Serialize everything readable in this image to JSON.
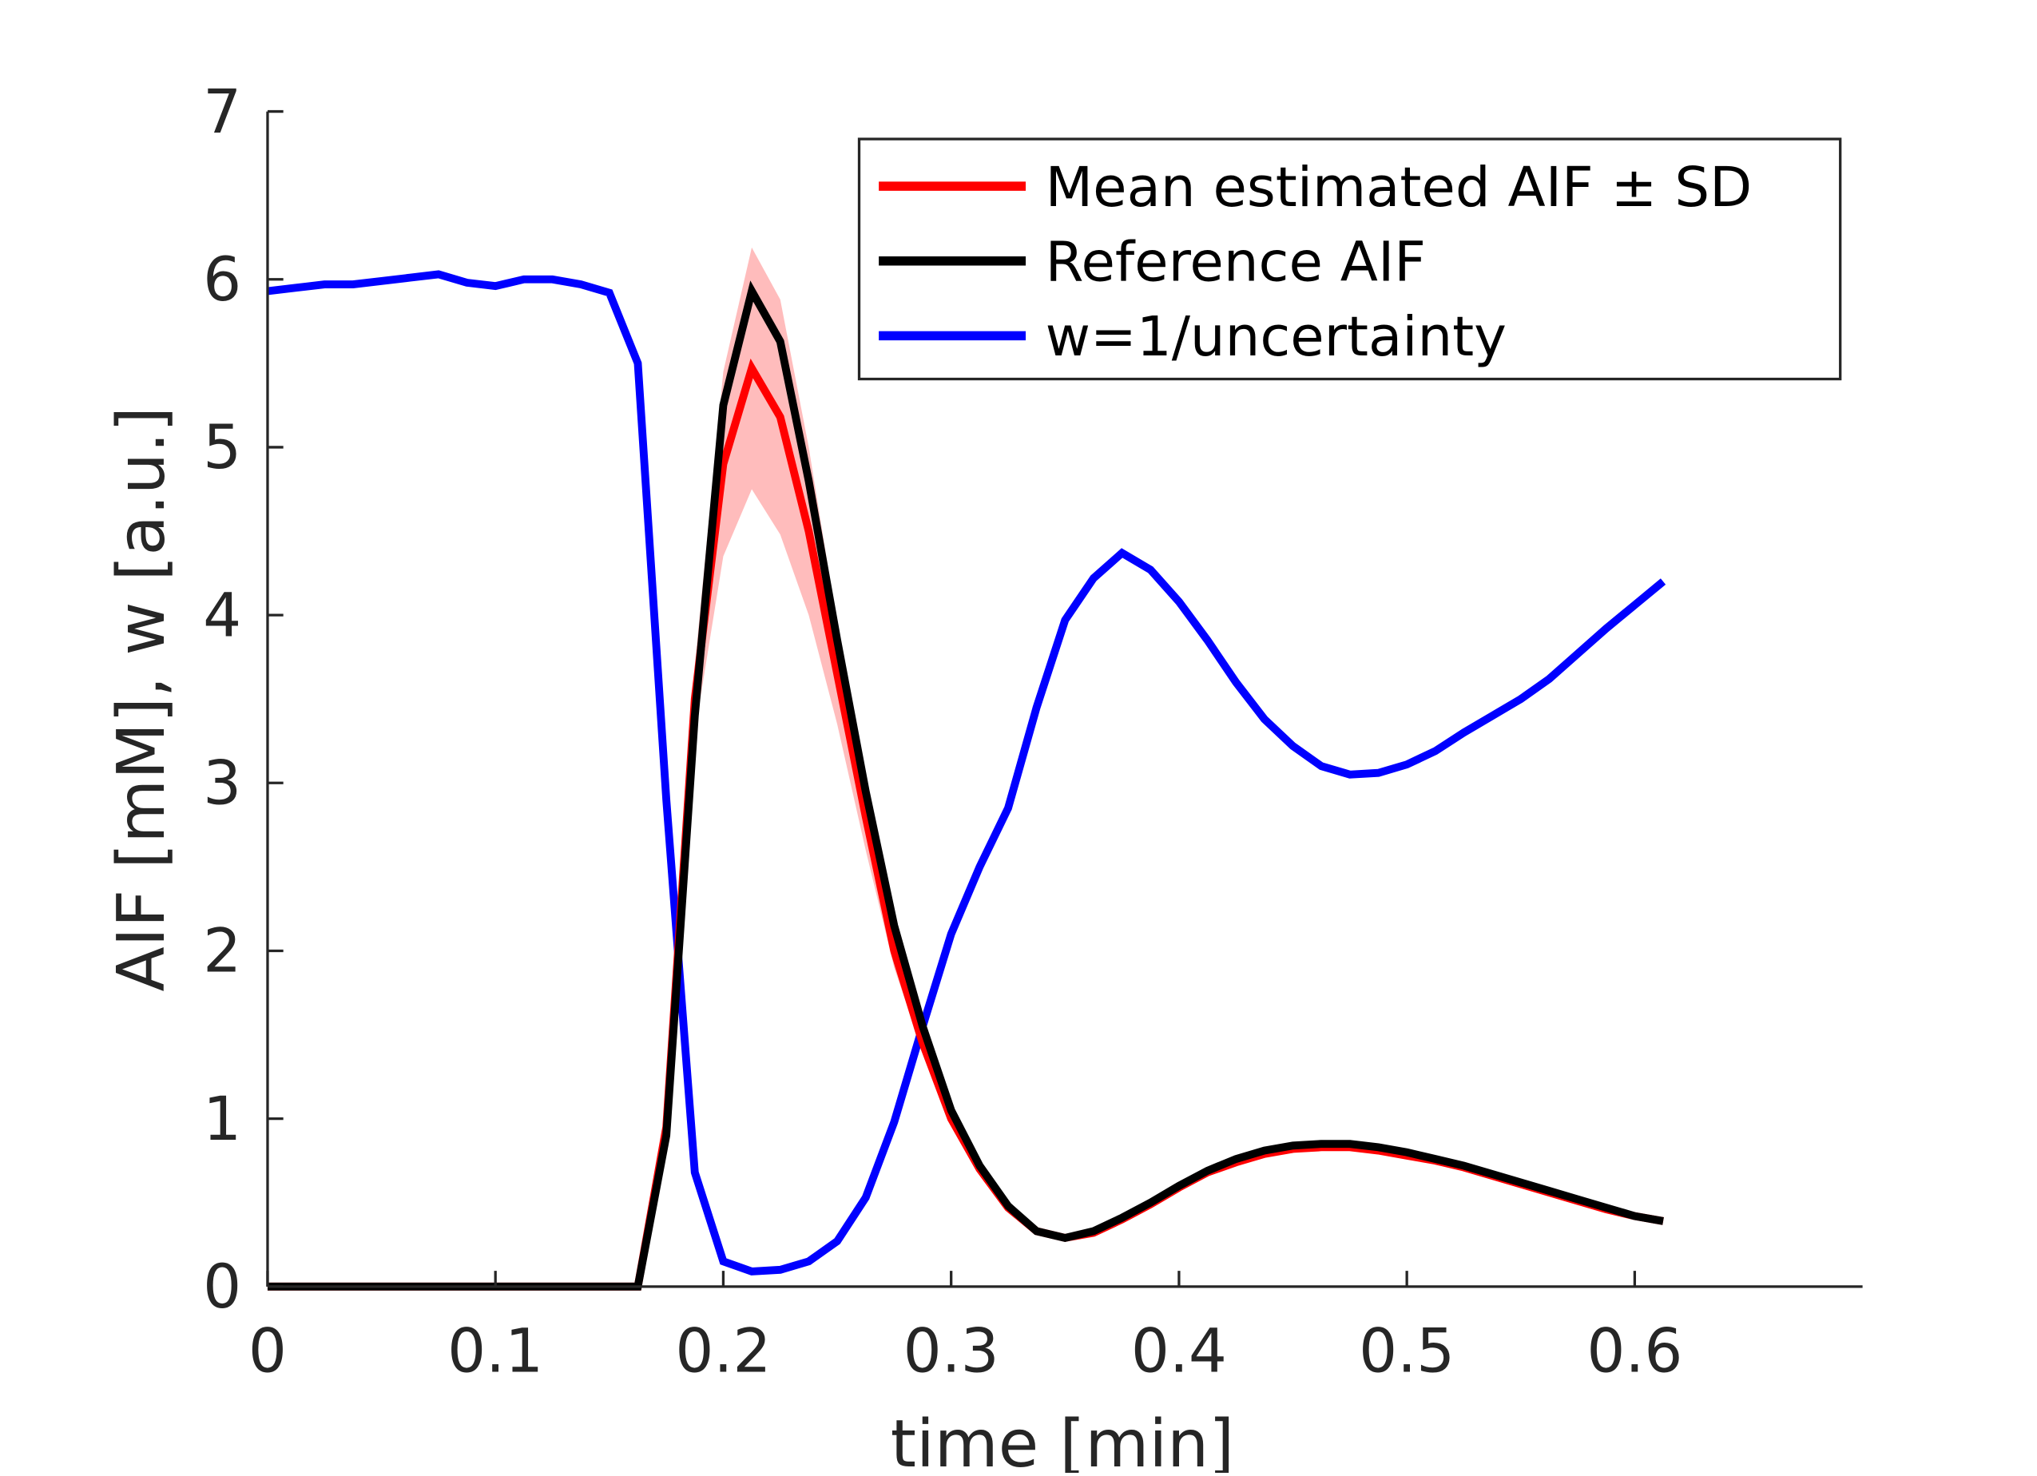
{
  "chart_data": {
    "type": "line",
    "xlabel": "time [min]",
    "ylabel": "AIF [mM], w [a.u.]",
    "x": [
      0,
      0.0125,
      0.025,
      0.0375,
      0.05,
      0.0625,
      0.075,
      0.0875,
      0.1,
      0.1125,
      0.125,
      0.1375,
      0.15,
      0.1625,
      0.175,
      0.1875,
      0.2,
      0.2125,
      0.225,
      0.2375,
      0.25,
      0.2625,
      0.275,
      0.2875,
      0.3,
      0.3125,
      0.325,
      0.3375,
      0.35,
      0.3625,
      0.375,
      0.3875,
      0.4,
      0.4125,
      0.425,
      0.4375,
      0.45,
      0.4625,
      0.475,
      0.4875,
      0.5,
      0.5125,
      0.525,
      0.5375,
      0.55,
      0.5625,
      0.575,
      0.5875,
      0.6,
      0.6125
    ],
    "series": [
      {
        "name": "Mean estimated AIF ± SD",
        "color": "#ff0000",
        "band_color": "#ffbcbc",
        "values": [
          0,
          0,
          0,
          0,
          0,
          0,
          0,
          0,
          0,
          0,
          0,
          0,
          0,
          0,
          0.95,
          3.5,
          4.9,
          5.47,
          5.18,
          4.5,
          3.65,
          2.8,
          2.0,
          1.45,
          1.0,
          0.7,
          0.47,
          0.33,
          0.29,
          0.32,
          0.4,
          0.49,
          0.59,
          0.68,
          0.74,
          0.79,
          0.82,
          0.83,
          0.83,
          0.81,
          0.78,
          0.75,
          0.71,
          0.66,
          0.61,
          0.56,
          0.51,
          0.46,
          0.42,
          0.39
        ],
        "errors": [
          0,
          0,
          0,
          0,
          0,
          0,
          0,
          0,
          0,
          0,
          0,
          0,
          0,
          0,
          0.05,
          0.2,
          0.55,
          0.72,
          0.7,
          0.5,
          0.3,
          0.2,
          0.1,
          0.05,
          0.03,
          0.02,
          0.01,
          0.01,
          0.01,
          0.01,
          0.01,
          0.01,
          0.01,
          0.01,
          0.01,
          0.01,
          0.01,
          0.01,
          0.01,
          0.01,
          0.01,
          0.01,
          0.01,
          0.01,
          0.01,
          0.01,
          0.01,
          0.01,
          0.01,
          0.01
        ]
      },
      {
        "name": "Reference AIF",
        "color": "#000000",
        "values": [
          0,
          0,
          0,
          0,
          0,
          0,
          0,
          0,
          0,
          0,
          0,
          0,
          0,
          0,
          0.9,
          3.4,
          5.25,
          5.93,
          5.63,
          4.8,
          3.85,
          2.95,
          2.15,
          1.55,
          1.05,
          0.72,
          0.48,
          0.33,
          0.29,
          0.33,
          0.41,
          0.5,
          0.6,
          0.69,
          0.76,
          0.81,
          0.84,
          0.85,
          0.85,
          0.83,
          0.8,
          0.76,
          0.72,
          0.67,
          0.62,
          0.57,
          0.52,
          0.47,
          0.42,
          0.39
        ]
      },
      {
        "name": "w=1/uncertainty",
        "color": "#0000ff",
        "values": [
          5.93,
          5.95,
          5.97,
          5.97,
          5.99,
          6.01,
          6.03,
          5.98,
          5.96,
          6.0,
          6.0,
          5.97,
          5.92,
          5.5,
          2.9,
          0.68,
          0.15,
          0.09,
          0.1,
          0.15,
          0.27,
          0.53,
          0.98,
          1.55,
          2.1,
          2.5,
          2.85,
          3.45,
          3.97,
          4.22,
          4.37,
          4.27,
          4.08,
          3.85,
          3.6,
          3.38,
          3.22,
          3.1,
          3.05,
          3.06,
          3.11,
          3.19,
          3.3,
          3.4,
          3.5,
          3.62,
          3.77,
          3.92,
          4.06,
          4.2
        ]
      }
    ],
    "xlim": [
      0,
      0.7
    ],
    "ylim": [
      0,
      7
    ],
    "xticks": [
      0,
      0.1,
      0.2,
      0.3,
      0.4,
      0.5,
      0.6
    ],
    "yticks": [
      0,
      1,
      2,
      3,
      4,
      5,
      6,
      7
    ],
    "legend": "upper right"
  }
}
